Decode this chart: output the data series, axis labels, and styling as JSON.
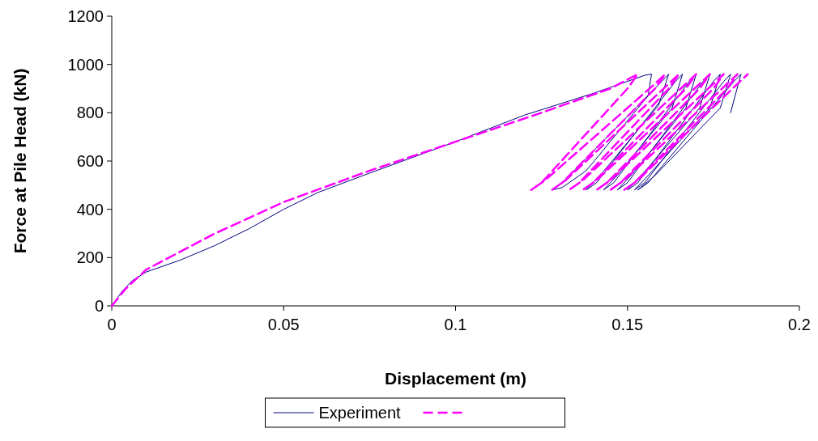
{
  "chart_data": {
    "type": "line",
    "xlabel": "Displacement (m)",
    "ylabel": "Force at Pile Head (kN)",
    "xlim": [
      0,
      0.2
    ],
    "xticks": [
      0,
      0.05,
      0.1,
      0.15,
      0.2
    ],
    "ylim": [
      0,
      1200
    ],
    "yticks": [
      0,
      200,
      400,
      600,
      800,
      1000,
      1200
    ],
    "grid": false,
    "legend": "bottom",
    "series": [
      {
        "name": "Experiment",
        "color": "#000080",
        "line_style": "solid",
        "x": [
          0,
          0.003,
          0.006,
          0.01,
          0.02,
          0.03,
          0.04,
          0.05,
          0.06,
          0.075,
          0.1,
          0.12,
          0.14,
          0.15,
          0.155,
          0.157,
          0.156,
          0.138,
          0.131,
          0.128,
          0.131,
          0.16,
          0.162,
          0.159,
          0.142,
          0.138,
          0.141,
          0.164,
          0.166,
          0.163,
          0.147,
          0.143,
          0.146,
          0.168,
          0.17,
          0.167,
          0.151,
          0.147,
          0.15,
          0.172,
          0.174,
          0.171,
          0.154,
          0.15,
          0.153,
          0.175,
          0.177,
          0.174,
          0.156,
          0.152,
          0.155,
          0.178,
          0.18,
          0.177,
          0.158,
          0.153,
          0.156,
          0.181,
          0.183,
          0.18
        ],
        "values": [
          0,
          60,
          105,
          140,
          190,
          250,
          320,
          400,
          470,
          550,
          680,
          790,
          880,
          930,
          955,
          960,
          870,
          560,
          490,
          480,
          510,
          930,
          960,
          830,
          540,
          480,
          510,
          930,
          960,
          820,
          540,
          480,
          510,
          930,
          960,
          820,
          540,
          480,
          510,
          930,
          960,
          820,
          540,
          480,
          510,
          930,
          960,
          820,
          540,
          480,
          510,
          930,
          960,
          820,
          540,
          480,
          510,
          930,
          960,
          800
        ]
      },
      {
        "color": "#ff00ff",
        "line_style": "dashed",
        "x": [
          0,
          0.004,
          0.01,
          0.03,
          0.05,
          0.075,
          0.1,
          0.125,
          0.145,
          0.153,
          0.15,
          0.125,
          0.122,
          0.126,
          0.158,
          0.161,
          0.158,
          0.131,
          0.128,
          0.132,
          0.162,
          0.165,
          0.162,
          0.136,
          0.133,
          0.137,
          0.167,
          0.17,
          0.167,
          0.14,
          0.137,
          0.141,
          0.171,
          0.174,
          0.171,
          0.144,
          0.141,
          0.145,
          0.175,
          0.178,
          0.175,
          0.148,
          0.145,
          0.149,
          0.179,
          0.182,
          0.179,
          0.152,
          0.149,
          0.153,
          0.182,
          0.185
        ],
        "values": [
          0,
          70,
          150,
          300,
          430,
          560,
          680,
          800,
          900,
          960,
          900,
          510,
          480,
          520,
          920,
          960,
          900,
          510,
          480,
          520,
          920,
          960,
          900,
          510,
          480,
          520,
          920,
          960,
          900,
          510,
          480,
          520,
          920,
          960,
          900,
          510,
          480,
          520,
          920,
          960,
          900,
          510,
          480,
          520,
          920,
          960,
          900,
          510,
          480,
          520,
          920,
          960
        ]
      }
    ]
  }
}
